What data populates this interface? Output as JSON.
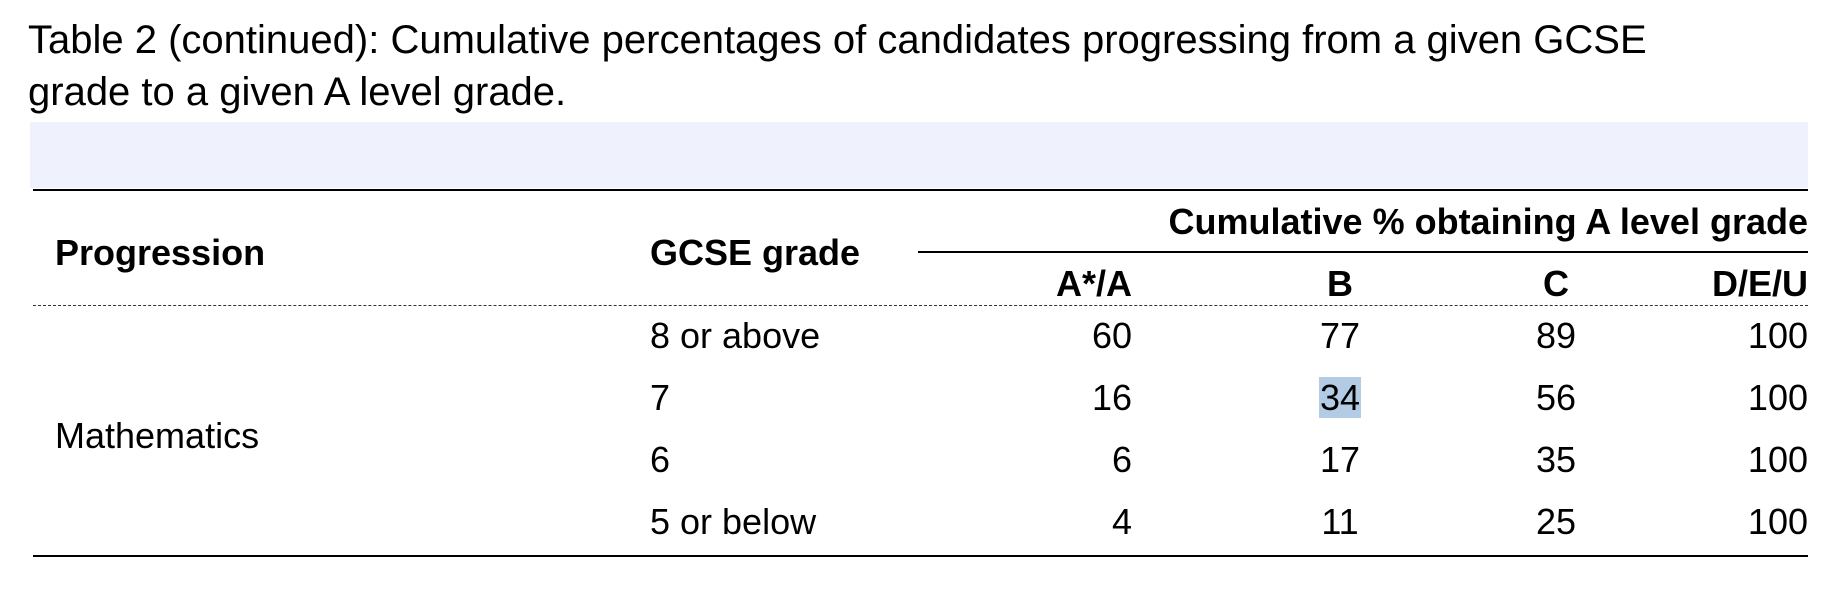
{
  "caption": {
    "line1": "Table 2 (continued): Cumulative percentages of candidates progressing from a given GCSE",
    "line2": "grade to a given A level grade."
  },
  "table": {
    "headers": {
      "progression": "Progression",
      "gcse_grade": "GCSE grade",
      "cumulative_span": "Cumulative % obtaining A level grade",
      "grades": [
        "A*/A",
        "B",
        "C",
        "D/E/U"
      ]
    },
    "progression_label": "Mathematics",
    "rows": [
      {
        "gcse": "8 or above",
        "a_star_a": "60",
        "b": "77",
        "c": "89",
        "deu": "100"
      },
      {
        "gcse": "7",
        "a_star_a": "16",
        "b": "34",
        "c": "56",
        "deu": "100"
      },
      {
        "gcse": "6",
        "a_star_a": "6",
        "b": "17",
        "c": "35",
        "deu": "100"
      },
      {
        "gcse": "5 or below",
        "a_star_a": "4",
        "b": "11",
        "c": "25",
        "deu": "100"
      }
    ]
  },
  "colors": {
    "header_shade": "#eff2fd",
    "selection_highlight": "#b3cbe4"
  }
}
